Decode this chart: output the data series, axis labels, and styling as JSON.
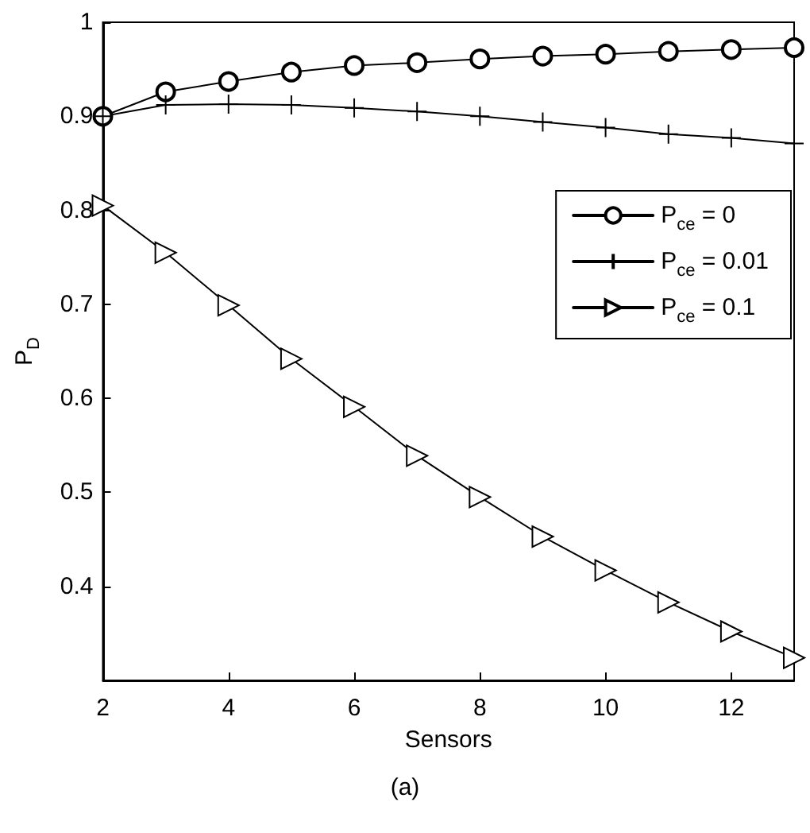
{
  "chart_data": {
    "type": "line",
    "xlabel": "Sensors",
    "ylabel": "P$_{D}$",
    "annotations": [
      "(a)"
    ],
    "x": [
      2,
      3,
      4,
      5,
      6,
      7,
      8,
      9,
      10,
      11,
      12,
      13
    ],
    "series": [
      {
        "name": "P$_{ce}$ = 0",
        "color": "#000000",
        "marker": "circle",
        "values": [
          0.9,
          0.926,
          0.937,
          0.947,
          0.954,
          0.957,
          0.961,
          0.964,
          0.966,
          0.969,
          0.971,
          0.973
        ]
      },
      {
        "name": "P$_{ce}$ = 0.01",
        "color": "#000000",
        "marker": "cross",
        "values": [
          0.9,
          0.912,
          0.913,
          0.912,
          0.909,
          0.905,
          0.9,
          0.894,
          0.888,
          0.881,
          0.877,
          0.871
        ]
      },
      {
        "name": "P$_{ce}$ = 0.1",
        "color": "#000000",
        "marker": "triangle",
        "values": [
          0.805,
          0.755,
          0.699,
          0.642,
          0.591,
          0.539,
          0.495,
          0.453,
          0.417,
          0.383,
          0.352,
          0.324
        ]
      }
    ],
    "xlim": [
      2,
      13
    ],
    "xticks": [
      2,
      4,
      6,
      8,
      10,
      12
    ],
    "ylim": [
      0.3,
      1
    ],
    "yticks": [
      0.4,
      0.5,
      0.6,
      0.7,
      0.8,
      0.9,
      1
    ],
    "grid": false,
    "legend": "top right",
    "line_style": "solid"
  }
}
